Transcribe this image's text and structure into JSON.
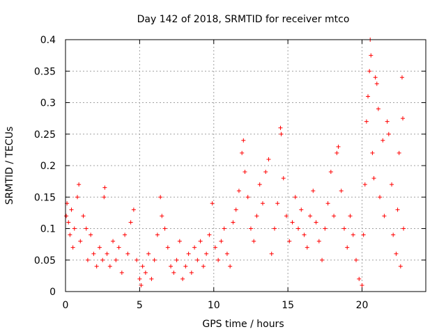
{
  "colors": {
    "points": "#ff0000",
    "grid": "#a0a0a0",
    "axis": "#000000"
  },
  "chart_data": {
    "type": "scatter",
    "title": "Day 142 of 2018, SRMTID for receiver mtco",
    "xlabel": "GPS time / hours",
    "ylabel": "SRMTID / TECUs",
    "xlim": [
      0,
      24.3
    ],
    "ylim": [
      0,
      0.4
    ],
    "grid": true,
    "xticks": [
      0,
      5,
      10,
      15,
      20
    ],
    "yticks": [
      0,
      0.05,
      0.1,
      0.15,
      0.2,
      0.25,
      0.3,
      0.35,
      0.4
    ],
    "xtick_labels": [
      "0",
      "5",
      "10",
      "15",
      "20"
    ],
    "ytick_labels": [
      "0",
      "0.05",
      "0.1",
      "0.15",
      "0.2",
      "0.25",
      "0.3",
      "0.35",
      "0.4"
    ],
    "marker": "+",
    "series": [
      {
        "name": "SRMTID",
        "points": [
          [
            0.05,
            0.12
          ],
          [
            0.1,
            0.14
          ],
          [
            0.2,
            0.11
          ],
          [
            0.3,
            0.09
          ],
          [
            0.4,
            0.13
          ],
          [
            0.5,
            0.07
          ],
          [
            0.6,
            0.1
          ],
          [
            0.8,
            0.15
          ],
          [
            0.9,
            0.17
          ],
          [
            1.0,
            0.08
          ],
          [
            1.2,
            0.12
          ],
          [
            1.4,
            0.1
          ],
          [
            1.5,
            0.05
          ],
          [
            1.7,
            0.09
          ],
          [
            1.9,
            0.06
          ],
          [
            2.1,
            0.04
          ],
          [
            2.3,
            0.07
          ],
          [
            2.5,
            0.05
          ],
          [
            2.6,
            0.15
          ],
          [
            2.65,
            0.165
          ],
          [
            2.8,
            0.06
          ],
          [
            3.0,
            0.04
          ],
          [
            3.2,
            0.08
          ],
          [
            3.4,
            0.05
          ],
          [
            3.6,
            0.07
          ],
          [
            3.8,
            0.03
          ],
          [
            4.0,
            0.09
          ],
          [
            4.2,
            0.06
          ],
          [
            4.4,
            0.11
          ],
          [
            4.6,
            0.13
          ],
          [
            4.8,
            0.05
          ],
          [
            5.0,
            0.02
          ],
          [
            5.1,
            0.01
          ],
          [
            5.2,
            0.04
          ],
          [
            5.4,
            0.03
          ],
          [
            5.6,
            0.06
          ],
          [
            5.8,
            0.02
          ],
          [
            6.0,
            0.05
          ],
          [
            6.2,
            0.09
          ],
          [
            6.4,
            0.15
          ],
          [
            6.5,
            0.12
          ],
          [
            6.7,
            0.1
          ],
          [
            6.9,
            0.07
          ],
          [
            7.1,
            0.04
          ],
          [
            7.3,
            0.03
          ],
          [
            7.5,
            0.05
          ],
          [
            7.7,
            0.08
          ],
          [
            7.9,
            0.02
          ],
          [
            8.1,
            0.04
          ],
          [
            8.3,
            0.06
          ],
          [
            8.5,
            0.03
          ],
          [
            8.7,
            0.07
          ],
          [
            8.9,
            0.05
          ],
          [
            9.1,
            0.08
          ],
          [
            9.3,
            0.04
          ],
          [
            9.5,
            0.06
          ],
          [
            9.7,
            0.09
          ],
          [
            9.9,
            0.14
          ],
          [
            10.1,
            0.07
          ],
          [
            10.3,
            0.05
          ],
          [
            10.5,
            0.08
          ],
          [
            10.7,
            0.1
          ],
          [
            10.9,
            0.06
          ],
          [
            11.1,
            0.04
          ],
          [
            11.3,
            0.11
          ],
          [
            11.5,
            0.13
          ],
          [
            11.7,
            0.16
          ],
          [
            11.9,
            0.22
          ],
          [
            12.0,
            0.24
          ],
          [
            12.1,
            0.19
          ],
          [
            12.3,
            0.15
          ],
          [
            12.5,
            0.1
          ],
          [
            12.7,
            0.08
          ],
          [
            12.9,
            0.12
          ],
          [
            13.1,
            0.17
          ],
          [
            13.3,
            0.14
          ],
          [
            13.5,
            0.19
          ],
          [
            13.7,
            0.21
          ],
          [
            13.9,
            0.06
          ],
          [
            14.1,
            0.1
          ],
          [
            14.3,
            0.14
          ],
          [
            14.5,
            0.26
          ],
          [
            14.55,
            0.25
          ],
          [
            14.7,
            0.18
          ],
          [
            14.9,
            0.12
          ],
          [
            15.1,
            0.08
          ],
          [
            15.3,
            0.11
          ],
          [
            15.5,
            0.15
          ],
          [
            15.7,
            0.1
          ],
          [
            15.9,
            0.13
          ],
          [
            16.1,
            0.09
          ],
          [
            16.3,
            0.07
          ],
          [
            16.5,
            0.12
          ],
          [
            16.7,
            0.16
          ],
          [
            16.9,
            0.11
          ],
          [
            17.1,
            0.08
          ],
          [
            17.3,
            0.05
          ],
          [
            17.5,
            0.1
          ],
          [
            17.7,
            0.14
          ],
          [
            17.9,
            0.19
          ],
          [
            18.1,
            0.12
          ],
          [
            18.3,
            0.22
          ],
          [
            18.4,
            0.23
          ],
          [
            18.6,
            0.16
          ],
          [
            18.8,
            0.1
          ],
          [
            19.0,
            0.07
          ],
          [
            19.2,
            0.12
          ],
          [
            19.4,
            0.09
          ],
          [
            19.6,
            0.05
          ],
          [
            19.8,
            0.02
          ],
          [
            20.0,
            0.01
          ],
          [
            20.1,
            0.09
          ],
          [
            20.2,
            0.17
          ],
          [
            20.3,
            0.27
          ],
          [
            20.4,
            0.31
          ],
          [
            20.5,
            0.35
          ],
          [
            20.55,
            0.4
          ],
          [
            20.6,
            0.375
          ],
          [
            20.7,
            0.22
          ],
          [
            20.8,
            0.18
          ],
          [
            20.9,
            0.34
          ],
          [
            21.0,
            0.33
          ],
          [
            21.1,
            0.29
          ],
          [
            21.2,
            0.15
          ],
          [
            21.4,
            0.24
          ],
          [
            21.5,
            0.12
          ],
          [
            21.7,
            0.27
          ],
          [
            21.8,
            0.25
          ],
          [
            22.0,
            0.17
          ],
          [
            22.1,
            0.09
          ],
          [
            22.3,
            0.06
          ],
          [
            22.4,
            0.13
          ],
          [
            22.5,
            0.22
          ],
          [
            22.6,
            0.04
          ],
          [
            22.7,
            0.34
          ],
          [
            22.75,
            0.275
          ],
          [
            22.8,
            0.1
          ]
        ]
      }
    ]
  }
}
